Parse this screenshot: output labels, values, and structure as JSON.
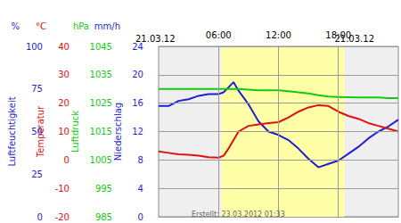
{
  "chart_data": {
    "type": "line",
    "dates": [
      "21.03.12",
      "21.03.12"
    ],
    "footer": "Erstellt: 23.03.2012 01:33",
    "x": [
      0,
      1,
      2,
      3,
      4,
      5,
      6,
      6.5,
      7,
      7.5,
      8,
      9,
      10,
      11,
      12,
      13,
      14,
      15,
      16,
      17,
      18,
      19,
      20,
      21,
      22,
      23,
      24
    ],
    "xlim": [
      0,
      24
    ],
    "xticks": [
      {
        "value": 6,
        "label": "06:00"
      },
      {
        "value": 12,
        "label": "12:00"
      },
      {
        "value": 18,
        "label": "18:00"
      }
    ],
    "daylight": [
      6.3,
      18.6
    ],
    "grid": true,
    "y_axes": [
      {
        "label": "Luftfeuchtigkeit",
        "unit": "%",
        "color": "#1f1fd0",
        "ylim": [
          0,
          100
        ],
        "yticks": [
          0,
          25,
          50,
          75,
          100
        ]
      },
      {
        "label": "Temperatur",
        "unit": "°C",
        "color": "#e01010",
        "ylim": [
          -20,
          40
        ],
        "yticks": [
          -20,
          -10,
          0,
          10,
          20,
          30,
          40
        ]
      },
      {
        "label": "Luftdruck",
        "unit": "hPa",
        "color": "#10cc10",
        "ylim": [
          985,
          1045
        ],
        "yticks": [
          985,
          995,
          1005,
          1015,
          1025,
          1035,
          1045
        ]
      },
      {
        "label": "Niederschlag",
        "unit": "mm/h",
        "color": "#1f1fd0",
        "ylim": [
          0,
          24
        ],
        "yticks": [
          0,
          4,
          8,
          12,
          16,
          20,
          24
        ]
      }
    ],
    "series": [
      {
        "axis": "y",
        "color": "#1f1fd0",
        "values": [
          65,
          65,
          68,
          69,
          71,
          72,
          72,
          73,
          76,
          79,
          74,
          66,
          56,
          50,
          48,
          45,
          40,
          34,
          29,
          31,
          33,
          37,
          41,
          46,
          50,
          53,
          57
        ]
      },
      {
        "axis": "y2",
        "color": "#e01010",
        "values": [
          3,
          2.5,
          2,
          1.8,
          1.5,
          1,
          0.8,
          1.5,
          4,
          7,
          10,
          12,
          12.5,
          13,
          13.3,
          15,
          17,
          18.5,
          19.3,
          19,
          17,
          15.5,
          14.5,
          13,
          12,
          11,
          10
        ]
      },
      {
        "axis": "y3",
        "color": "#10cc10",
        "values": [
          1030,
          1030,
          1030,
          1030,
          1030,
          1030,
          1030,
          1030,
          1030,
          1030,
          1030,
          1029.8,
          1029.5,
          1029.5,
          1029.5,
          1029.2,
          1028.8,
          1028.4,
          1027.8,
          1027.3,
          1027.2,
          1027.1,
          1027,
          1027,
          1027,
          1026.8,
          1026.8
        ]
      }
    ]
  }
}
